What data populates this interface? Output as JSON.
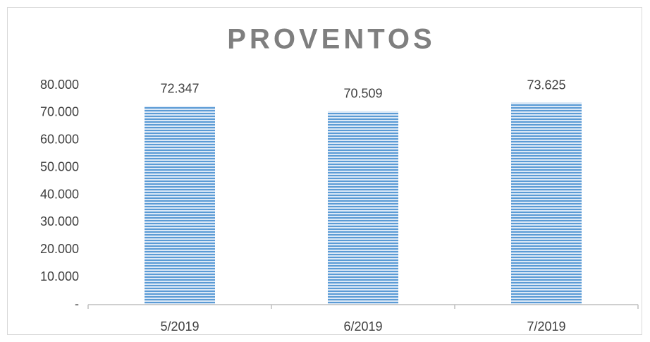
{
  "chart_data": {
    "type": "bar",
    "title": "PROVENTOS",
    "categories": [
      "5/2019",
      "6/2019",
      "7/2019"
    ],
    "values": [
      72347,
      70509,
      73625
    ],
    "value_labels": [
      "72.347",
      "70.509",
      "73.625"
    ],
    "color": "#5b9bd5",
    "ylim": [
      0,
      80000
    ],
    "yticks": [
      {
        "value": 0,
        "label": "-"
      },
      {
        "value": 10000,
        "label": "10.000"
      },
      {
        "value": 20000,
        "label": "20.000"
      },
      {
        "value": 30000,
        "label": "30.000"
      },
      {
        "value": 40000,
        "label": "40.000"
      },
      {
        "value": 50000,
        "label": "50.000"
      },
      {
        "value": 60000,
        "label": "60.000"
      },
      {
        "value": 70000,
        "label": "70.000"
      },
      {
        "value": 80000,
        "label": "80.000"
      }
    ],
    "grid": false
  }
}
